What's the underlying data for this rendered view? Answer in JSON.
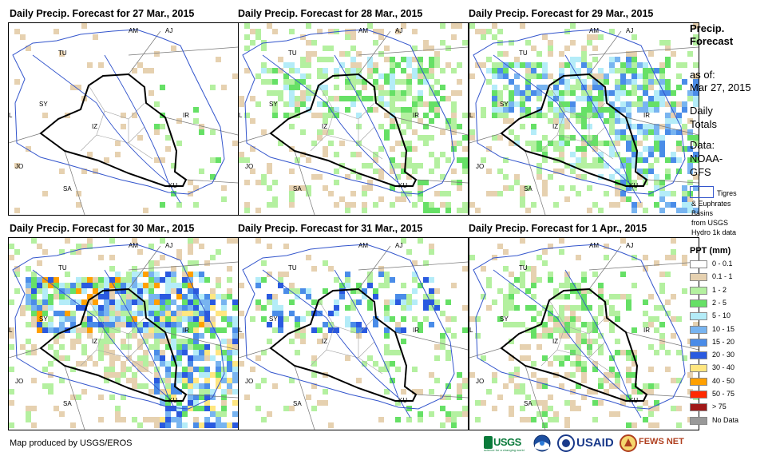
{
  "panels": [
    {
      "title": "Daily Precip. Forecast for 27 Mar., 2015"
    },
    {
      "title": "Daily Precip. Forecast for 28 Mar., 2015"
    },
    {
      "title": "Daily Precip. Forecast for 29 Mar., 2015"
    },
    {
      "title": "Daily Precip. Forecast for 30 Mar., 2015"
    },
    {
      "title": "Daily Precip. Forecast for 31 Mar., 2015"
    },
    {
      "title": "Daily Precip. Forecast for 1 Apr., 2015"
    }
  ],
  "map_labels": {
    "AM": "AM",
    "AJ": "AJ",
    "TU": "TU",
    "SY": "SY",
    "IZ": "IZ",
    "IR": "IR",
    "JO": "JO",
    "SA": "SA",
    "KU": "KU",
    "L": "L"
  },
  "sidebar": {
    "title": "Precip. Forecast",
    "as_of_label": "as of:",
    "as_of_date": "Mar 27, 2015",
    "daily": "Daily Totals",
    "data_label": "Data:",
    "data_source": "NOAA-GFS",
    "basin_line1": "Tigres",
    "basin_line2": "& Euphrates",
    "basin_line3": "Basins",
    "basin_line4": "from USGS",
    "basin_line5": "Hydro 1k data",
    "ppt_title": "PPT (mm)"
  },
  "legend": [
    {
      "label": "0 - 0.1",
      "color": "#ffffff"
    },
    {
      "label": "0.1 - 1",
      "color": "#e6d1b0"
    },
    {
      "label": "1 - 2",
      "color": "#b4f0a0"
    },
    {
      "label": "2 - 5",
      "color": "#66e066"
    },
    {
      "label": "5 - 10",
      "color": "#b4ecf8"
    },
    {
      "label": "10 - 15",
      "color": "#78b4f0"
    },
    {
      "label": "15 - 20",
      "color": "#4a8ce8"
    },
    {
      "label": "20 - 30",
      "color": "#2a5ae0"
    },
    {
      "label": "30 - 40",
      "color": "#ffe680"
    },
    {
      "label": "40 - 50",
      "color": "#ffa000"
    },
    {
      "label": "50 - 75",
      "color": "#ff2a00"
    },
    {
      "label": "> 75",
      "color": "#a01818"
    },
    {
      "label": "No Data",
      "color": "#999999"
    }
  ],
  "footer": {
    "credit": "Map produced by USGS/EROS",
    "logos": [
      "USGS",
      "NOAA",
      "USAID",
      "FEWS NET"
    ],
    "usgs_tag": "science for a changing world"
  }
}
